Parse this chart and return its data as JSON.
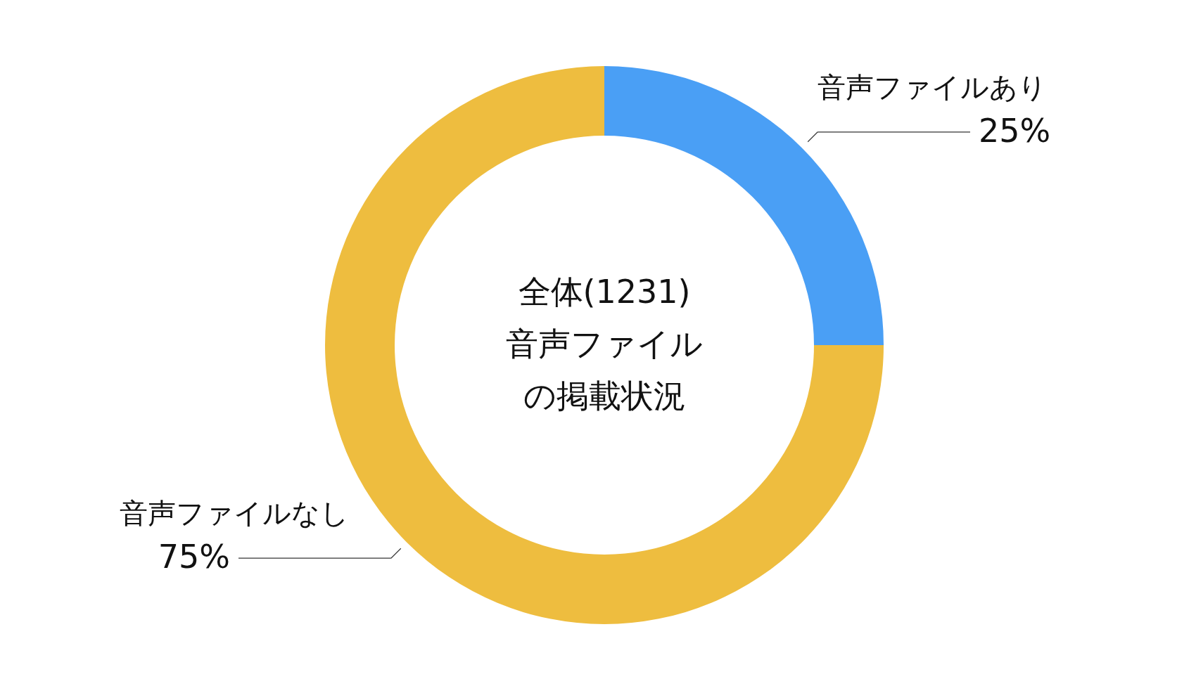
{
  "chart_data": {
    "type": "donut",
    "title": "全体(1231)",
    "subtitle": "音声ファイルの掲載状況",
    "categories": [
      "音声ファイルあり",
      "音声ファイルなし"
    ],
    "values": [
      25,
      75
    ],
    "colors": [
      "#4a9ff5",
      "#eebd3f"
    ],
    "value_labels": [
      "25%",
      "75%"
    ]
  }
}
